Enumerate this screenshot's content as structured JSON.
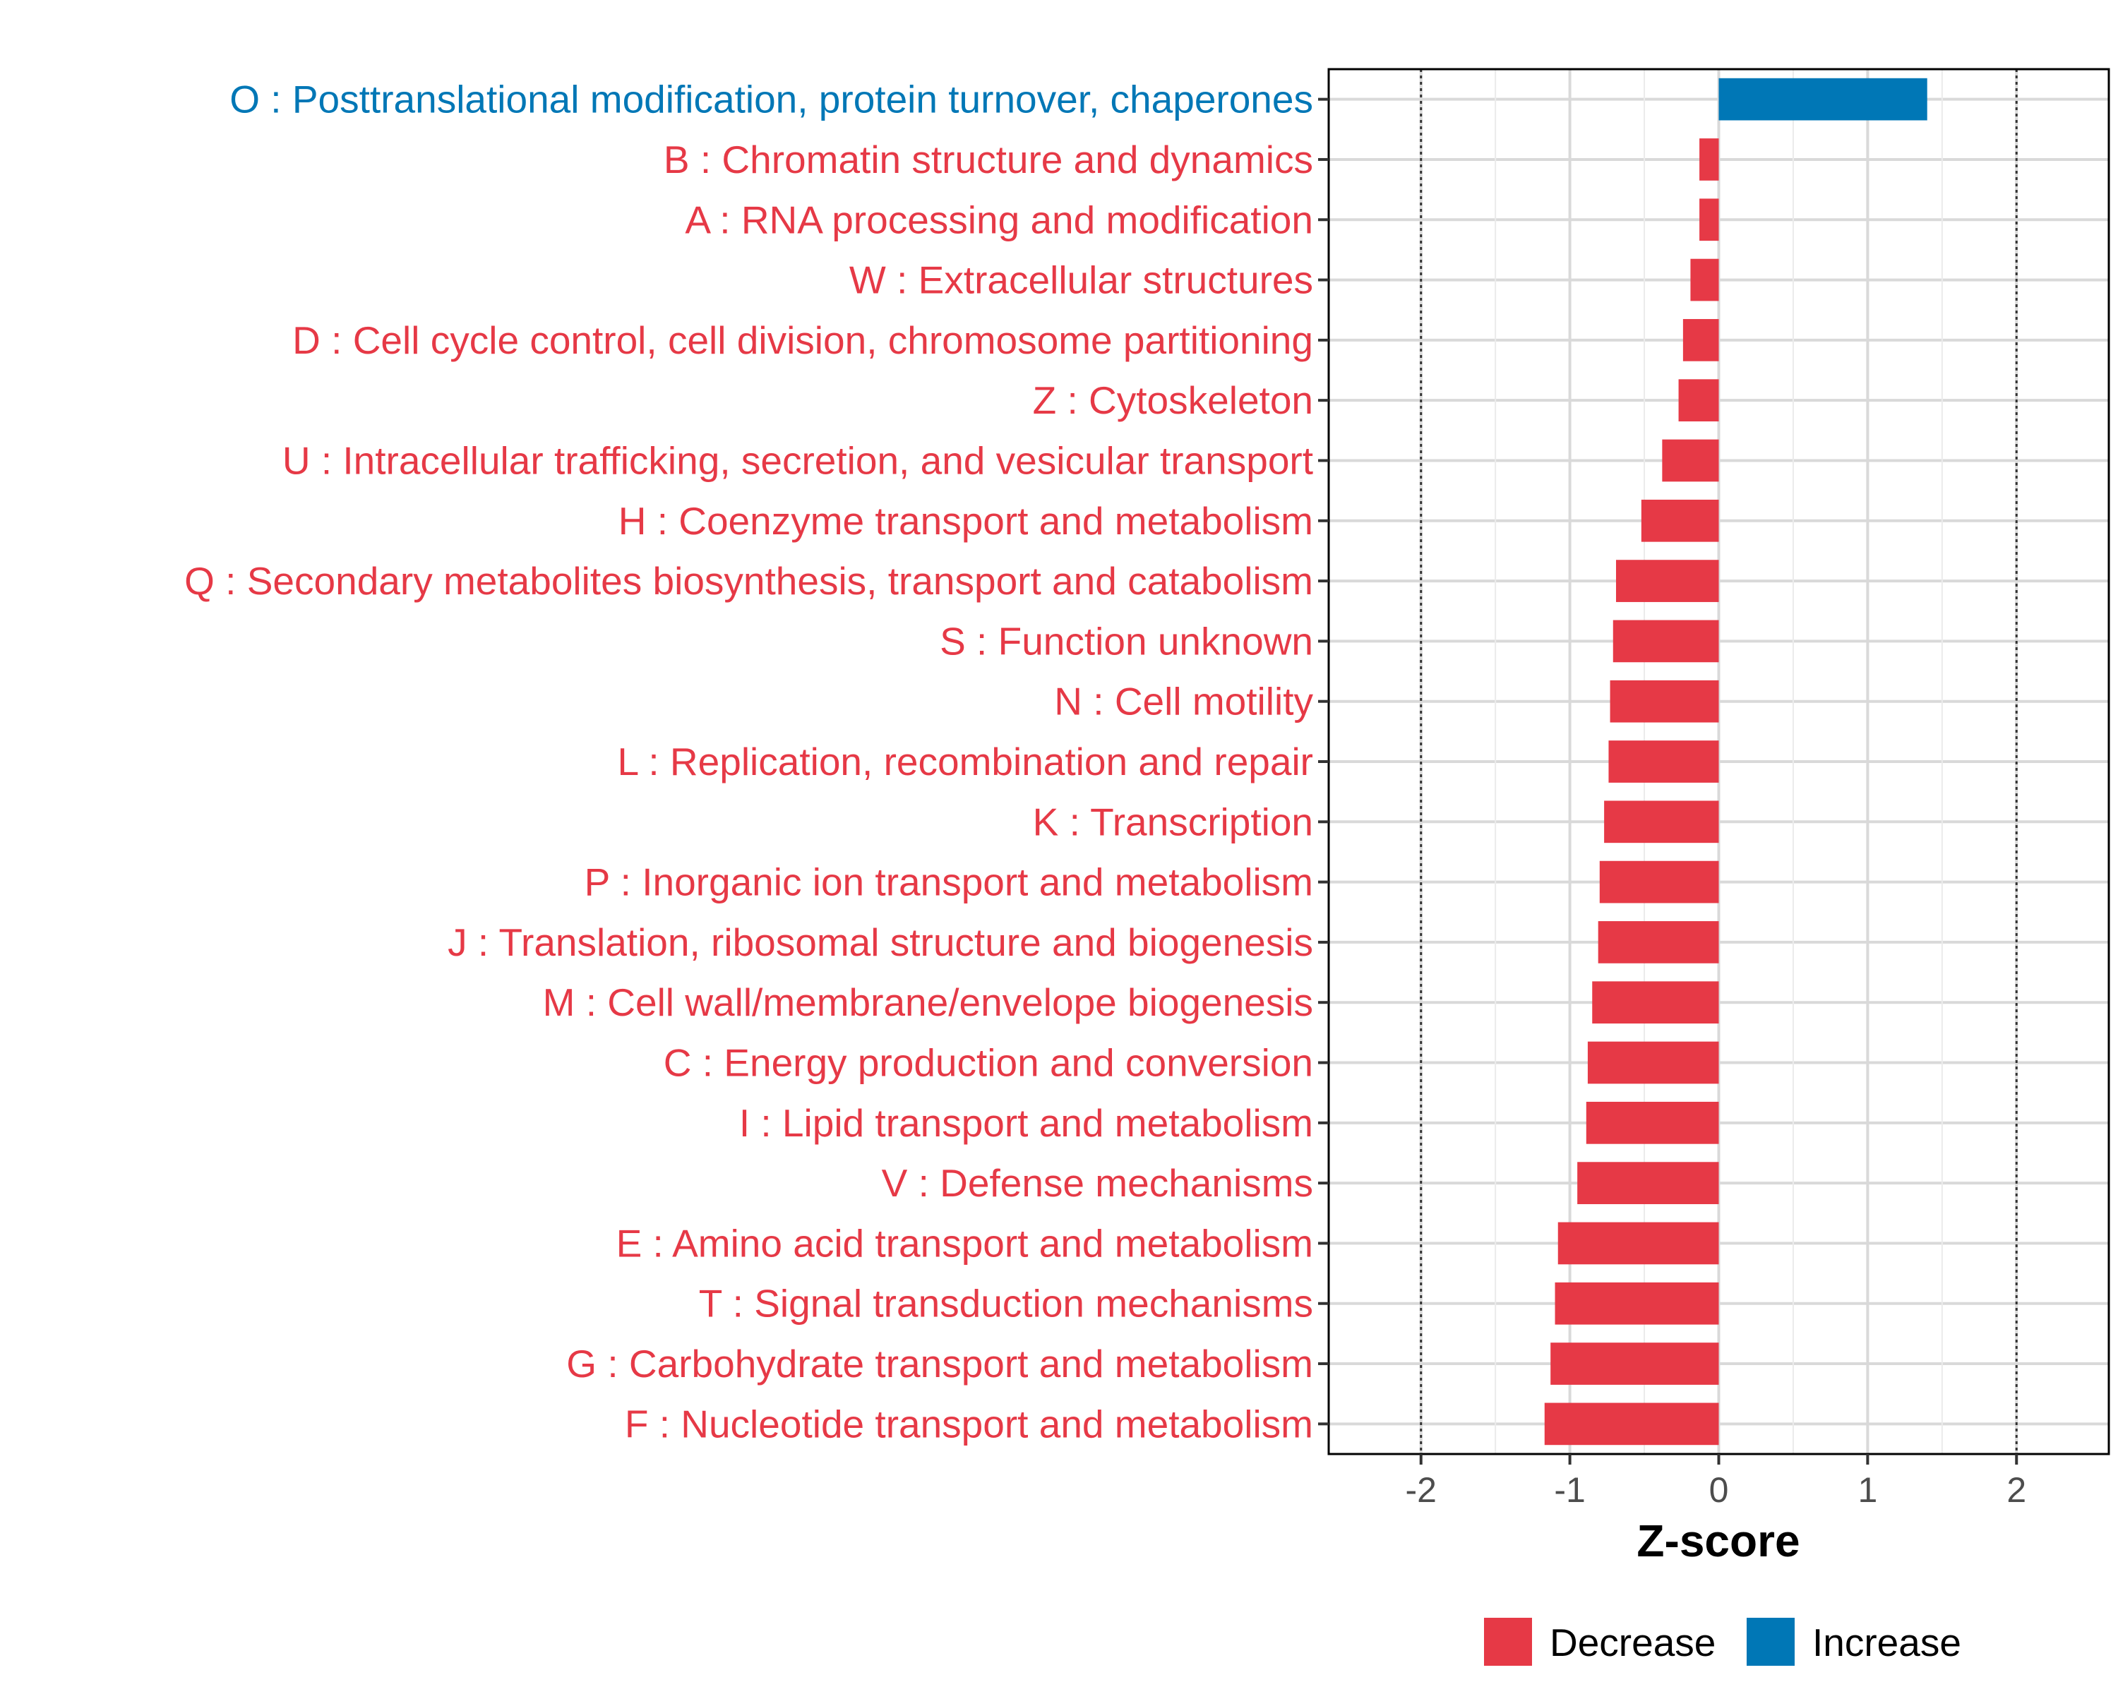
{
  "chart_data": {
    "type": "bar",
    "orientation": "horizontal",
    "title": "",
    "xlabel": "Z-score",
    "ylabel": "",
    "xlim": [
      -2.62,
      2.62
    ],
    "xticks": [
      -2,
      -1,
      0,
      1,
      2
    ],
    "xtick_labels": [
      "-2",
      "-1",
      "0",
      "1",
      "2"
    ],
    "reference_lines": [
      -2,
      2
    ],
    "grid": true,
    "legend_position": "bottom",
    "colors": {
      "Decrease": "#E63946",
      "Increase": "#0077B6"
    },
    "legend": [
      {
        "name": "Decrease",
        "color": "#E63946"
      },
      {
        "name": "Increase",
        "color": "#0077B6"
      }
    ],
    "categories": [
      "O : Posttranslational modification, protein turnover, chaperones",
      "B : Chromatin structure and dynamics",
      "A : RNA processing and modification",
      "W : Extracellular structures",
      "D : Cell cycle control, cell division, chromosome partitioning",
      "Z : Cytoskeleton",
      "U : Intracellular trafficking, secretion, and vesicular transport",
      "H : Coenzyme transport and metabolism",
      "Q : Secondary metabolites biosynthesis, transport and catabolism",
      "S : Function unknown",
      "N : Cell motility",
      "L : Replication, recombination and repair",
      "K : Transcription",
      "P : Inorganic ion transport and metabolism",
      "J : Translation, ribosomal structure and biogenesis",
      "M : Cell wall/membrane/envelope biogenesis",
      "C : Energy production and conversion",
      "I : Lipid transport and metabolism",
      "V : Defense mechanisms",
      "E : Amino acid transport and metabolism",
      "T : Signal transduction mechanisms",
      "G : Carbohydrate transport and metabolism",
      "F : Nucleotide transport and metabolism"
    ],
    "values": [
      1.4,
      -0.13,
      -0.13,
      -0.19,
      -0.24,
      -0.27,
      -0.38,
      -0.52,
      -0.69,
      -0.71,
      -0.73,
      -0.74,
      -0.77,
      -0.8,
      -0.81,
      -0.85,
      -0.88,
      -0.89,
      -0.95,
      -1.08,
      -1.1,
      -1.13,
      -1.17
    ],
    "direction": [
      "Increase",
      "Decrease",
      "Decrease",
      "Decrease",
      "Decrease",
      "Decrease",
      "Decrease",
      "Decrease",
      "Decrease",
      "Decrease",
      "Decrease",
      "Decrease",
      "Decrease",
      "Decrease",
      "Decrease",
      "Decrease",
      "Decrease",
      "Decrease",
      "Decrease",
      "Decrease",
      "Decrease",
      "Decrease",
      "Decrease"
    ]
  }
}
